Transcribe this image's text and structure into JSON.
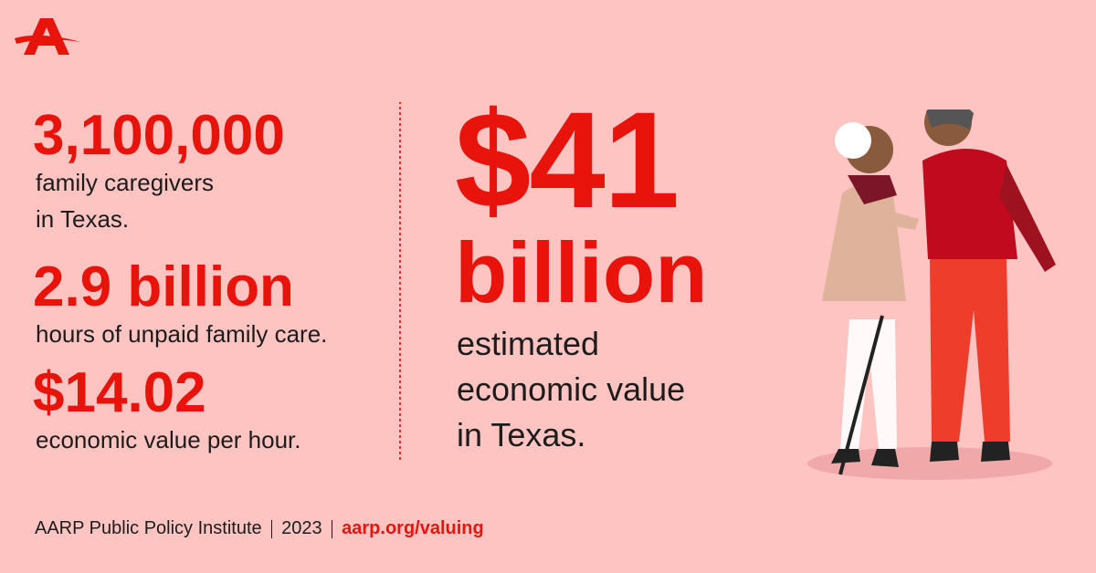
{
  "stats": [
    {
      "value": "3,100,000",
      "lines": [
        "family caregivers",
        "in Texas."
      ]
    },
    {
      "value": "2.9 billion",
      "lines": [
        "hours of unpaid family care."
      ]
    },
    {
      "value": "$14.02",
      "lines": [
        "economic value per hour."
      ]
    }
  ],
  "headline": {
    "value": "$41",
    "unit": "billion",
    "lines": [
      "estimated",
      "economic value",
      "in Texas."
    ]
  },
  "footer": {
    "source": "AARP Public Policy Institute",
    "year": "2023",
    "link": "aarp.org/valuing"
  }
}
